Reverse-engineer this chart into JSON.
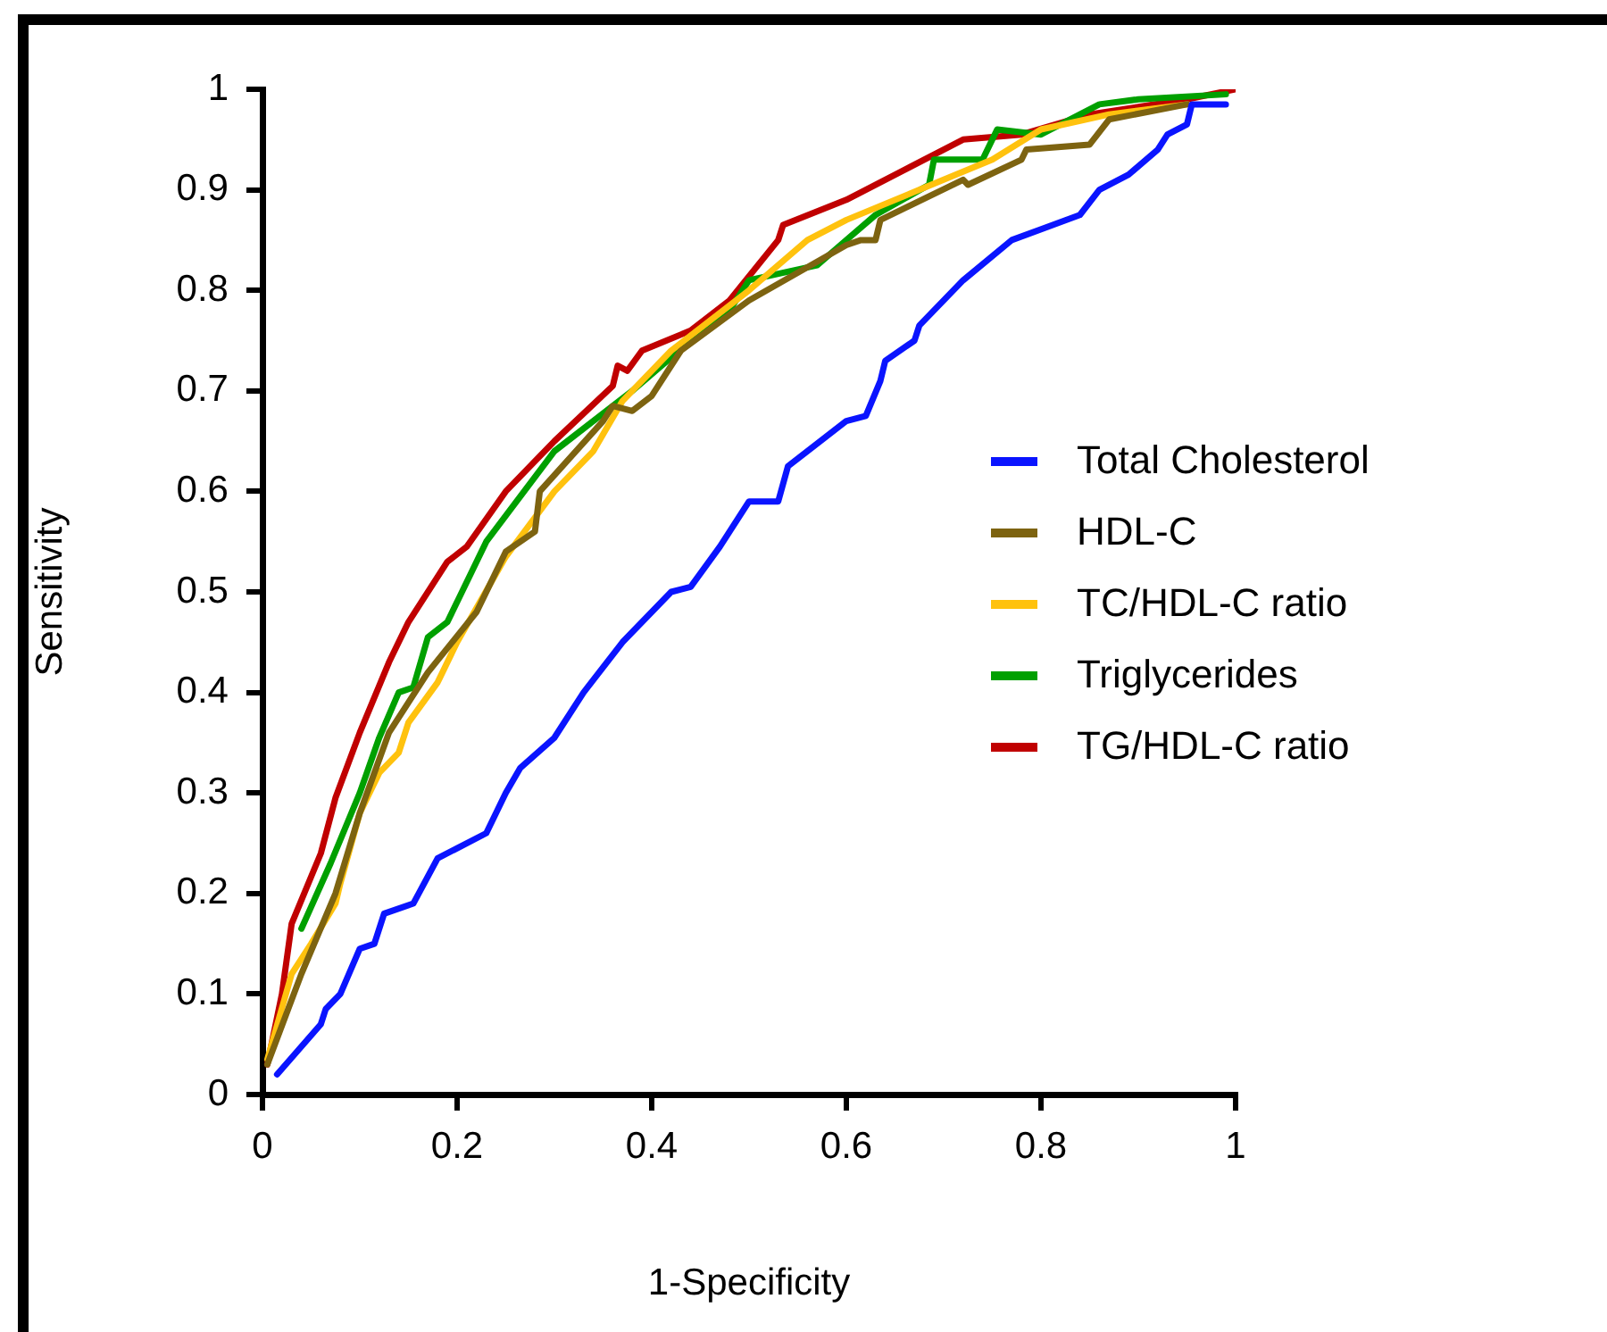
{
  "chart_data": {
    "type": "line",
    "xlabel": "1-Specificity",
    "ylabel": "Sensitivity",
    "xlim": [
      0,
      1
    ],
    "ylim": [
      0,
      1
    ],
    "xticks": [
      0,
      0.2,
      0.4,
      0.6,
      0.8,
      1
    ],
    "yticks": [
      0,
      0.1,
      0.2,
      0.3,
      0.4,
      0.5,
      0.6,
      0.7,
      0.8,
      0.9,
      1
    ],
    "grid": false,
    "legend": "right",
    "marker": "none",
    "line_style": "solid",
    "series": [
      {
        "name": "Total Cholesterol",
        "color": "#0a14ff",
        "x": [
          0.015,
          0.06,
          0.065,
          0.08,
          0.1,
          0.115,
          0.125,
          0.155,
          0.18,
          0.23,
          0.25,
          0.265,
          0.3,
          0.33,
          0.37,
          0.4,
          0.42,
          0.44,
          0.47,
          0.5,
          0.53,
          0.54,
          0.6,
          0.62,
          0.635,
          0.64,
          0.67,
          0.675,
          0.72,
          0.77,
          0.84,
          0.86,
          0.89,
          0.92,
          0.93,
          0.95,
          0.955,
          0.99
        ],
        "values": [
          0.02,
          0.07,
          0.085,
          0.1,
          0.145,
          0.15,
          0.18,
          0.19,
          0.235,
          0.26,
          0.3,
          0.325,
          0.355,
          0.4,
          0.45,
          0.48,
          0.5,
          0.505,
          0.545,
          0.59,
          0.59,
          0.625,
          0.67,
          0.675,
          0.71,
          0.73,
          0.75,
          0.765,
          0.81,
          0.85,
          0.875,
          0.9,
          0.915,
          0.94,
          0.955,
          0.965,
          0.985,
          0.985
        ]
      },
      {
        "name": "HDL-C",
        "color": "#7d6310",
        "x": [
          0.005,
          0.04,
          0.075,
          0.1,
          0.13,
          0.15,
          0.17,
          0.22,
          0.25,
          0.28,
          0.285,
          0.35,
          0.36,
          0.38,
          0.4,
          0.43,
          0.5,
          0.6,
          0.615,
          0.63,
          0.635,
          0.72,
          0.725,
          0.78,
          0.785,
          0.85,
          0.87,
          0.95
        ],
        "values": [
          0.03,
          0.12,
          0.2,
          0.28,
          0.36,
          0.39,
          0.42,
          0.48,
          0.54,
          0.56,
          0.6,
          0.67,
          0.685,
          0.68,
          0.695,
          0.74,
          0.79,
          0.845,
          0.85,
          0.85,
          0.87,
          0.91,
          0.905,
          0.93,
          0.94,
          0.945,
          0.97,
          0.985
        ]
      },
      {
        "name": "TC/HDL-C ratio",
        "color": "#ffc20e",
        "x": [
          0.005,
          0.03,
          0.05,
          0.075,
          0.08,
          0.1,
          0.12,
          0.14,
          0.15,
          0.18,
          0.2,
          0.25,
          0.3,
          0.34,
          0.37,
          0.42,
          0.5,
          0.56,
          0.6,
          0.7,
          0.75,
          0.8,
          0.87,
          0.95
        ],
        "values": [
          0.035,
          0.12,
          0.15,
          0.19,
          0.21,
          0.28,
          0.32,
          0.34,
          0.37,
          0.41,
          0.45,
          0.535,
          0.6,
          0.64,
          0.69,
          0.74,
          0.8,
          0.85,
          0.87,
          0.91,
          0.93,
          0.96,
          0.975,
          0.985
        ]
      },
      {
        "name": "Triglycerides",
        "color": "#00a000",
        "x": [
          0.04,
          0.07,
          0.1,
          0.12,
          0.14,
          0.155,
          0.17,
          0.19,
          0.23,
          0.3,
          0.38,
          0.44,
          0.48,
          0.5,
          0.57,
          0.6,
          0.63,
          0.685,
          0.69,
          0.74,
          0.755,
          0.8,
          0.86,
          0.9,
          0.99
        ],
        "values": [
          0.165,
          0.23,
          0.3,
          0.355,
          0.4,
          0.405,
          0.455,
          0.47,
          0.55,
          0.64,
          0.7,
          0.75,
          0.78,
          0.81,
          0.825,
          0.85,
          0.875,
          0.905,
          0.93,
          0.93,
          0.96,
          0.955,
          0.985,
          0.99,
          0.995
        ]
      },
      {
        "name": "TG/HDL-C ratio",
        "color": "#c00000",
        "x": [
          0.005,
          0.02,
          0.03,
          0.06,
          0.075,
          0.1,
          0.13,
          0.15,
          0.19,
          0.21,
          0.25,
          0.3,
          0.36,
          0.365,
          0.375,
          0.39,
          0.44,
          0.48,
          0.53,
          0.535,
          0.6,
          0.66,
          0.72,
          0.78,
          0.85,
          0.95,
          1
        ],
        "values": [
          0.03,
          0.1,
          0.17,
          0.24,
          0.295,
          0.36,
          0.43,
          0.47,
          0.53,
          0.545,
          0.6,
          0.65,
          0.705,
          0.725,
          0.72,
          0.74,
          0.76,
          0.79,
          0.85,
          0.865,
          0.89,
          0.92,
          0.95,
          0.955,
          0.975,
          0.99,
          1
        ]
      }
    ]
  }
}
